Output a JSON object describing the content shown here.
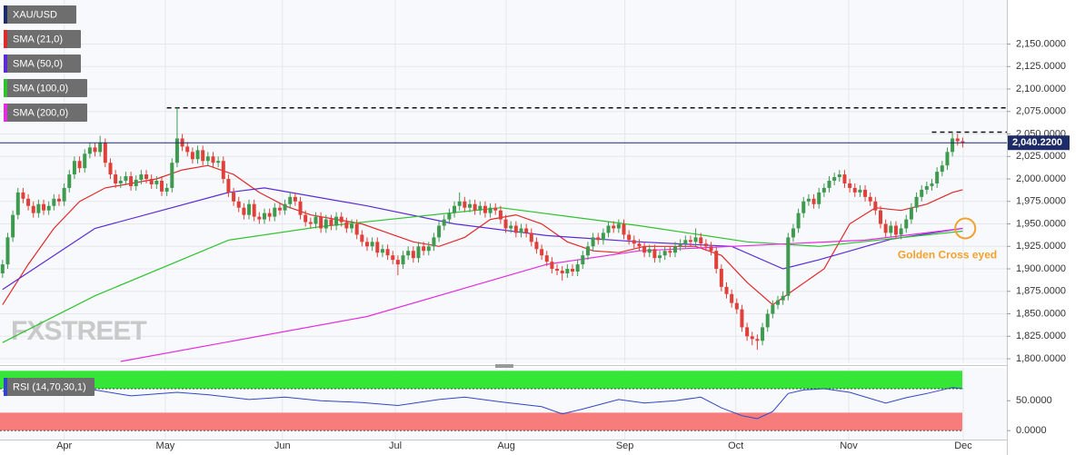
{
  "chart_data": {
    "type": "candlestick",
    "symbol": "XAU/USD",
    "up_color": "#3e9a4f",
    "down_color": "#e0403a",
    "grid": true,
    "xlim": [
      -0.5,
      195.6
    ],
    "xticks": [
      {
        "value": 12.0,
        "label": "Apr"
      },
      {
        "value": 31.7,
        "label": "May"
      },
      {
        "value": 54.5,
        "label": "Jun"
      },
      {
        "value": 76.5,
        "label": "Jul"
      },
      {
        "value": 98.1,
        "label": "Aug"
      },
      {
        "value": 121.2,
        "label": "Sep"
      },
      {
        "value": 142.8,
        "label": "Oct"
      },
      {
        "value": 164.8,
        "label": "Nov"
      },
      {
        "value": 187.1,
        "label": "Dec"
      }
    ],
    "ylim": [
      1795,
      2199
    ],
    "yticks": [
      {
        "value": 1800,
        "label": "1,800.0000"
      },
      {
        "value": 1825,
        "label": "1,825.0000"
      },
      {
        "value": 1850,
        "label": "1,850.0000"
      },
      {
        "value": 1875,
        "label": "1,875.0000"
      },
      {
        "value": 1900,
        "label": "1,900.0000"
      },
      {
        "value": 1925,
        "label": "1,925.0000"
      },
      {
        "value": 1950,
        "label": "1,950.0000"
      },
      {
        "value": 1975,
        "label": "1,975.0000"
      },
      {
        "value": 2000,
        "label": "2,000.0000"
      },
      {
        "value": 2025,
        "label": "2,025.0000"
      },
      {
        "value": 2050,
        "label": "2,050.0000"
      },
      {
        "value": 2075,
        "label": "2,075.0000"
      },
      {
        "value": 2100,
        "label": "2,100.0000"
      },
      {
        "value": 2125,
        "label": "2,125.0000"
      },
      {
        "value": 2150,
        "label": "2,150.0000"
      }
    ],
    "last_price": {
      "value": 2040.22,
      "label": "2,040.2200"
    },
    "hlines": [
      {
        "value": 2079,
        "from": 32
      },
      {
        "value": 2052,
        "from": 181
      }
    ],
    "ohlc": [
      [
        1895,
        1910,
        1890,
        1905
      ],
      [
        1905,
        1940,
        1900,
        1935
      ],
      [
        1935,
        1965,
        1930,
        1960
      ],
      [
        1960,
        1990,
        1955,
        1985
      ],
      [
        1985,
        1990,
        1973,
        1978
      ],
      [
        1978,
        1983,
        1965,
        1970
      ],
      [
        1970,
        1975,
        1957,
        1962
      ],
      [
        1962,
        1977,
        1957,
        1972
      ],
      [
        1972,
        1977,
        1960,
        1965
      ],
      [
        1965,
        1975,
        1960,
        1970
      ],
      [
        1970,
        1983,
        1965,
        1978
      ],
      [
        1978,
        1983,
        1970,
        1975
      ],
      [
        1975,
        1995,
        1970,
        1990
      ],
      [
        1990,
        2010,
        1985,
        2005
      ],
      [
        2005,
        2025,
        2000,
        2020
      ],
      [
        2020,
        2025,
        2007,
        2012
      ],
      [
        2012,
        2033,
        2007,
        2028
      ],
      [
        2028,
        2040,
        2023,
        2035
      ],
      [
        2035,
        2040,
        2025,
        2030
      ],
      [
        2030,
        2048,
        2025,
        2040
      ],
      [
        2040,
        2045,
        2013,
        2018
      ],
      [
        2018,
        2023,
        2000,
        2005
      ],
      [
        2005,
        2010,
        1990,
        1995
      ],
      [
        1995,
        2003,
        1990,
        1998
      ],
      [
        1998,
        2008,
        1993,
        2003
      ],
      [
        2003,
        2008,
        1987,
        1992
      ],
      [
        1992,
        2004,
        1987,
        1999
      ],
      [
        1999,
        2010,
        1994,
        2005
      ],
      [
        2005,
        2010,
        1995,
        2000
      ],
      [
        2000,
        2005,
        1989,
        1994
      ],
      [
        1994,
        2003,
        1989,
        1998
      ],
      [
        1998,
        2003,
        1981,
        1986
      ],
      [
        1986,
        1995,
        1981,
        1990
      ],
      [
        1990,
        2023,
        1985,
        2018
      ],
      [
        2018,
        2080,
        2013,
        2045
      ],
      [
        2045,
        2050,
        2031,
        2036
      ],
      [
        2036,
        2041,
        2025,
        2030
      ],
      [
        2030,
        2035,
        2017,
        2022
      ],
      [
        2022,
        2037,
        2017,
        2032
      ],
      [
        2032,
        2037,
        2015,
        2020
      ],
      [
        2020,
        2030,
        2015,
        2025
      ],
      [
        2025,
        2030,
        2013,
        2018
      ],
      [
        2018,
        2025,
        2013,
        2020
      ],
      [
        2020,
        2025,
        1995,
        2000
      ],
      [
        2000,
        2005,
        1980,
        1985
      ],
      [
        1985,
        1990,
        1970,
        1975
      ],
      [
        1975,
        1980,
        1963,
        1968
      ],
      [
        1968,
        1973,
        1955,
        1960
      ],
      [
        1960,
        1977,
        1955,
        1972
      ],
      [
        1972,
        1977,
        1953,
        1958
      ],
      [
        1958,
        1963,
        1950,
        1955
      ],
      [
        1955,
        1967,
        1950,
        1962
      ],
      [
        1962,
        1967,
        1953,
        1958
      ],
      [
        1958,
        1973,
        1953,
        1968
      ],
      [
        1968,
        1973,
        1960,
        1965
      ],
      [
        1965,
        1977,
        1960,
        1972
      ],
      [
        1972,
        1985,
        1967,
        1980
      ],
      [
        1980,
        1985,
        1970,
        1975
      ],
      [
        1975,
        1980,
        1955,
        1960
      ],
      [
        1960,
        1965,
        1947,
        1952
      ],
      [
        1952,
        1957,
        1945,
        1950
      ],
      [
        1950,
        1963,
        1945,
        1958
      ],
      [
        1958,
        1963,
        1940,
        1945
      ],
      [
        1945,
        1960,
        1940,
        1955
      ],
      [
        1955,
        1960,
        1943,
        1948
      ],
      [
        1948,
        1963,
        1943,
        1958
      ],
      [
        1958,
        1963,
        1947,
        1952
      ],
      [
        1952,
        1957,
        1940,
        1945
      ],
      [
        1945,
        1955,
        1940,
        1950
      ],
      [
        1950,
        1955,
        1933,
        1938
      ],
      [
        1938,
        1943,
        1925,
        1930
      ],
      [
        1930,
        1935,
        1920,
        1925
      ],
      [
        1925,
        1935,
        1920,
        1930
      ],
      [
        1930,
        1935,
        1913,
        1918
      ],
      [
        1918,
        1927,
        1913,
        1922
      ],
      [
        1922,
        1927,
        1910,
        1915
      ],
      [
        1915,
        1920,
        1905,
        1910
      ],
      [
        1910,
        1915,
        1893,
        1905
      ],
      [
        1905,
        1920,
        1900,
        1915
      ],
      [
        1915,
        1925,
        1910,
        1920
      ],
      [
        1920,
        1925,
        1907,
        1912
      ],
      [
        1912,
        1930,
        1907,
        1925
      ],
      [
        1925,
        1930,
        1915,
        1920
      ],
      [
        1920,
        1930,
        1915,
        1925
      ],
      [
        1925,
        1940,
        1920,
        1935
      ],
      [
        1935,
        1953,
        1930,
        1948
      ],
      [
        1948,
        1960,
        1943,
        1955
      ],
      [
        1955,
        1967,
        1950,
        1962
      ],
      [
        1962,
        1975,
        1957,
        1970
      ],
      [
        1970,
        1985,
        1965,
        1975
      ],
      [
        1975,
        1980,
        1963,
        1968
      ],
      [
        1968,
        1977,
        1963,
        1972
      ],
      [
        1972,
        1977,
        1960,
        1965
      ],
      [
        1965,
        1975,
        1960,
        1970
      ],
      [
        1970,
        1975,
        1957,
        1962
      ],
      [
        1962,
        1973,
        1957,
        1968
      ],
      [
        1968,
        1973,
        1960,
        1965
      ],
      [
        1965,
        1970,
        1950,
        1955
      ],
      [
        1955,
        1960,
        1940,
        1945
      ],
      [
        1945,
        1953,
        1940,
        1948
      ],
      [
        1948,
        1953,
        1935,
        1940
      ],
      [
        1940,
        1950,
        1935,
        1945
      ],
      [
        1945,
        1950,
        1935,
        1940
      ],
      [
        1940,
        1945,
        1925,
        1930
      ],
      [
        1930,
        1935,
        1917,
        1922
      ],
      [
        1922,
        1927,
        1910,
        1915
      ],
      [
        1915,
        1920,
        1903,
        1908
      ],
      [
        1908,
        1913,
        1895,
        1900
      ],
      [
        1900,
        1905,
        1893,
        1898
      ],
      [
        1898,
        1903,
        1887,
        1895
      ],
      [
        1895,
        1905,
        1890,
        1900
      ],
      [
        1900,
        1905,
        1892,
        1897
      ],
      [
        1897,
        1910,
        1892,
        1905
      ],
      [
        1905,
        1920,
        1900,
        1915
      ],
      [
        1915,
        1930,
        1910,
        1925
      ],
      [
        1925,
        1940,
        1920,
        1935
      ],
      [
        1935,
        1940,
        1927,
        1932
      ],
      [
        1932,
        1945,
        1927,
        1940
      ],
      [
        1940,
        1953,
        1935,
        1948
      ],
      [
        1948,
        1953,
        1940,
        1945
      ],
      [
        1945,
        1955,
        1940,
        1950
      ],
      [
        1950,
        1955,
        1933,
        1938
      ],
      [
        1938,
        1943,
        1927,
        1932
      ],
      [
        1932,
        1937,
        1923,
        1928
      ],
      [
        1928,
        1933,
        1920,
        1925
      ],
      [
        1925,
        1930,
        1913,
        1918
      ],
      [
        1918,
        1927,
        1913,
        1922
      ],
      [
        1922,
        1927,
        1907,
        1912
      ],
      [
        1912,
        1920,
        1907,
        1915
      ],
      [
        1915,
        1925,
        1910,
        1920
      ],
      [
        1920,
        1925,
        1913,
        1918
      ],
      [
        1918,
        1930,
        1913,
        1925
      ],
      [
        1925,
        1933,
        1920,
        1928
      ],
      [
        1928,
        1937,
        1923,
        1932
      ],
      [
        1932,
        1937,
        1925,
        1930
      ],
      [
        1930,
        1945,
        1925,
        1935
      ],
      [
        1935,
        1940,
        1923,
        1928
      ],
      [
        1928,
        1933,
        1920,
        1925
      ],
      [
        1925,
        1930,
        1915,
        1920
      ],
      [
        1920,
        1925,
        1895,
        1900
      ],
      [
        1900,
        1905,
        1875,
        1880
      ],
      [
        1880,
        1885,
        1867,
        1872
      ],
      [
        1872,
        1877,
        1857,
        1862
      ],
      [
        1862,
        1867,
        1850,
        1855
      ],
      [
        1855,
        1860,
        1830,
        1835
      ],
      [
        1835,
        1840,
        1820,
        1825
      ],
      [
        1825,
        1830,
        1815,
        1822
      ],
      [
        1822,
        1827,
        1810,
        1820
      ],
      [
        1820,
        1840,
        1815,
        1835
      ],
      [
        1835,
        1855,
        1830,
        1850
      ],
      [
        1850,
        1865,
        1845,
        1860
      ],
      [
        1860,
        1870,
        1855,
        1865
      ],
      [
        1865,
        1875,
        1860,
        1870
      ],
      [
        1870,
        1940,
        1865,
        1935
      ],
      [
        1935,
        1950,
        1930,
        1945
      ],
      [
        1945,
        1967,
        1940,
        1962
      ],
      [
        1962,
        1980,
        1957,
        1975
      ],
      [
        1975,
        1983,
        1970,
        1978
      ],
      [
        1978,
        1983,
        1967,
        1972
      ],
      [
        1972,
        1990,
        1967,
        1985
      ],
      [
        1985,
        1995,
        1980,
        1990
      ],
      [
        1990,
        2003,
        1985,
        1998
      ],
      [
        1998,
        2007,
        1993,
        2002
      ],
      [
        2002,
        2010,
        1997,
        2005
      ],
      [
        2005,
        2010,
        1990,
        1995
      ],
      [
        1995,
        2000,
        1985,
        1990
      ],
      [
        1990,
        1995,
        1980,
        1985
      ],
      [
        1985,
        1993,
        1980,
        1988
      ],
      [
        1988,
        1993,
        1975,
        1980
      ],
      [
        1980,
        1985,
        1970,
        1975
      ],
      [
        1975,
        1980,
        1960,
        1965
      ],
      [
        1965,
        1970,
        1945,
        1950
      ],
      [
        1950,
        1955,
        1935,
        1940
      ],
      [
        1940,
        1953,
        1935,
        1948
      ],
      [
        1948,
        1953,
        1933,
        1938
      ],
      [
        1938,
        1950,
        1933,
        1945
      ],
      [
        1945,
        1960,
        1940,
        1955
      ],
      [
        1955,
        1973,
        1950,
        1968
      ],
      [
        1968,
        1985,
        1963,
        1980
      ],
      [
        1980,
        1993,
        1975,
        1988
      ],
      [
        1988,
        1997,
        1983,
        1992
      ],
      [
        1992,
        2000,
        1987,
        1995
      ],
      [
        1995,
        2013,
        1990,
        2008
      ],
      [
        2008,
        2020,
        2003,
        2015
      ],
      [
        2015,
        2035,
        2010,
        2030
      ],
      [
        2030,
        2052,
        2025,
        2045
      ],
      [
        2045,
        2050,
        2037,
        2042
      ],
      [
        2042,
        2046,
        2035,
        2040.22
      ]
    ],
    "series": [
      {
        "name": "SMA (21,0)",
        "color": "#e02a2a",
        "x": [
          0,
          5,
          10,
          15,
          20,
          25,
          30,
          35,
          40,
          45,
          50,
          55,
          60,
          65,
          70,
          75,
          80,
          85,
          90,
          95,
          100,
          105,
          110,
          115,
          120,
          125,
          130,
          135,
          140,
          145,
          150,
          155,
          160,
          165,
          170,
          175,
          180,
          185,
          187
        ],
        "values": [
          1860,
          1905,
          1945,
          1975,
          1990,
          1995,
          2000,
          2010,
          2015,
          2005,
          1985,
          1970,
          1960,
          1955,
          1950,
          1940,
          1930,
          1925,
          1935,
          1955,
          1960,
          1950,
          1930,
          1920,
          1918,
          1925,
          1925,
          1925,
          1915,
          1885,
          1860,
          1880,
          1900,
          1950,
          1968,
          1965,
          1972,
          1985,
          1988
        ]
      },
      {
        "name": "SMA (50,0)",
        "color": "#5b2bd6",
        "x": [
          0,
          18,
          44,
          51,
          71,
          88,
          106,
          124,
          142,
          152,
          159,
          173,
          187
        ],
        "values": [
          1877,
          1945,
          1985,
          1990,
          1970,
          1950,
          1937,
          1930,
          1925,
          1900,
          1910,
          1933,
          1945
        ]
      },
      {
        "name": "SMA (100,0)",
        "color": "#2fc22f",
        "x": [
          0,
          18,
          44,
          62,
          97,
          124,
          145,
          159,
          187
        ],
        "values": [
          1818,
          1870,
          1932,
          1947,
          1968,
          1948,
          1930,
          1925,
          1942
        ]
      },
      {
        "name": "SMA (200,0)",
        "color": "#e22ee0",
        "x": [
          23,
          71,
          106,
          124,
          142,
          168,
          187
        ],
        "values": [
          1797,
          1847,
          1905,
          1920,
          1925,
          1932,
          1945
        ]
      }
    ],
    "annotation": {
      "text": "Golden Cross eyed",
      "x": 187.5,
      "y": 1945,
      "color": "#f2a12e"
    },
    "watermark": "FXSTREET",
    "rsi": {
      "name": "RSI (14,70,30,1)",
      "color": "#2f46c7",
      "ylim": [
        -15,
        105
      ],
      "yticks": [
        {
          "value": 50,
          "label": "50.0000"
        },
        {
          "value": 0,
          "label": "0.0000"
        }
      ],
      "bands": [
        {
          "range": [
            70,
            100
          ],
          "color": "#36e636"
        },
        {
          "range": [
            0,
            30
          ],
          "color": "#f77d7d"
        }
      ],
      "x": [
        0,
        10,
        18,
        25,
        34,
        40,
        48,
        55,
        62,
        70,
        77,
        85,
        90,
        97,
        105,
        109,
        113,
        120,
        125,
        131,
        136,
        140,
        144,
        147,
        150,
        153,
        156,
        160,
        165,
        172,
        176,
        180,
        185,
        187
      ],
      "values": [
        66,
        62,
        68,
        58,
        64,
        60,
        52,
        56,
        50,
        47,
        42,
        52,
        56,
        48,
        40,
        28,
        36,
        52,
        46,
        50,
        56,
        38,
        25,
        20,
        32,
        62,
        68,
        70,
        64,
        46,
        55,
        62,
        72,
        70
      ]
    }
  }
}
